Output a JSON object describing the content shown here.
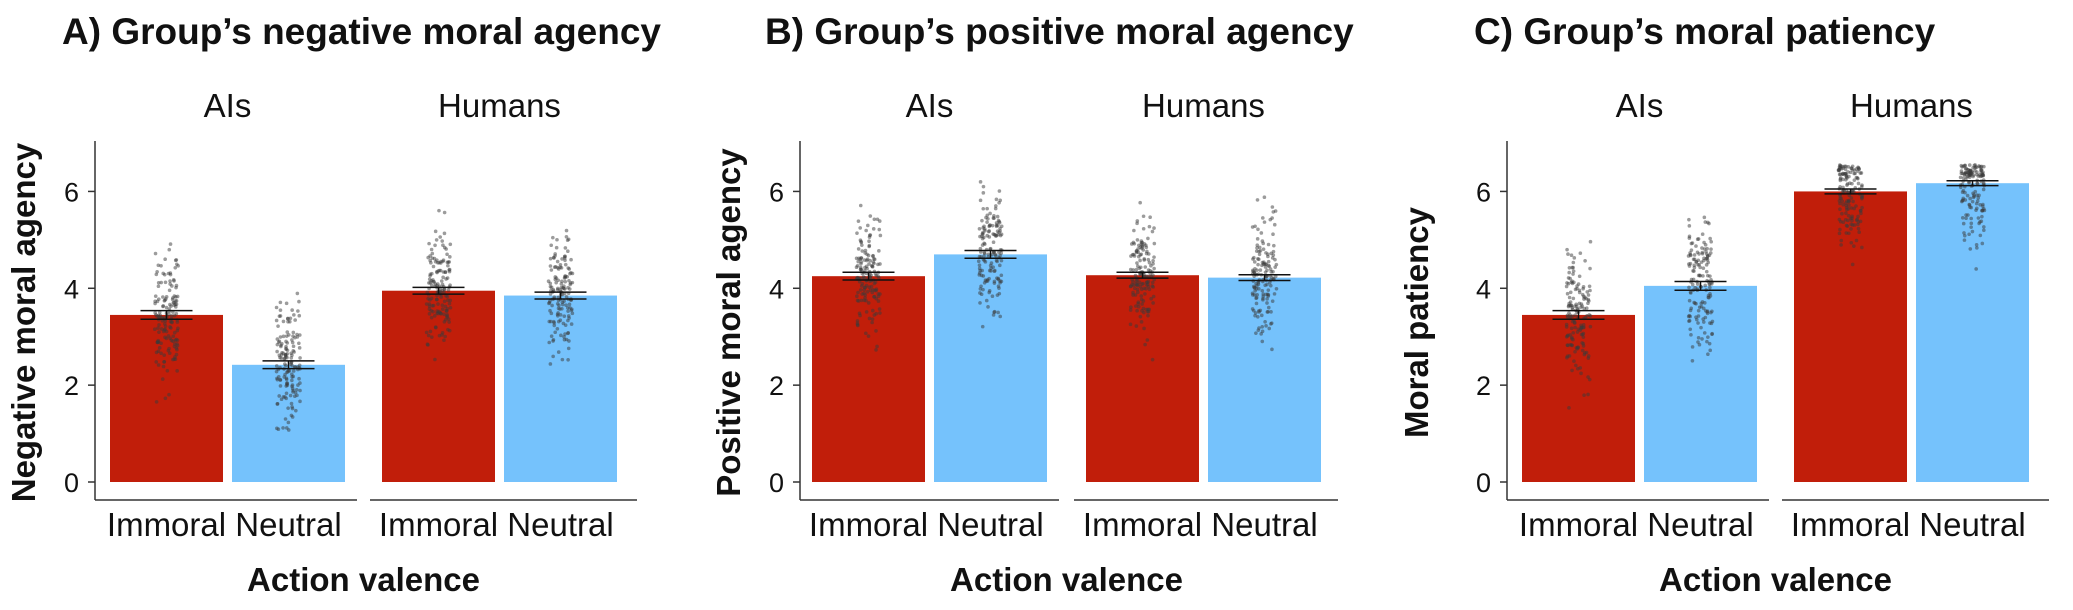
{
  "chart_data": [
    {
      "type": "bar",
      "title": "A) Group’s negative moral agency",
      "ylabel": "Negative moral agency",
      "xlabel": "Action valence",
      "ylim": [
        0,
        7
      ],
      "yticks": [
        0,
        2,
        4,
        6
      ],
      "grid": false,
      "facets": [
        {
          "label": "AIs",
          "categories": [
            "Immoral",
            "Neutral"
          ],
          "values": [
            3.45,
            2.42
          ],
          "se": [
            0.09,
            0.08
          ]
        },
        {
          "label": "Humans",
          "categories": [
            "Immoral",
            "Neutral"
          ],
          "values": [
            3.95,
            3.85
          ],
          "se": [
            0.07,
            0.07
          ]
        }
      ]
    },
    {
      "type": "bar",
      "title": "B) Group’s positive moral agency",
      "ylabel": "Positive moral agency",
      "xlabel": "Action valence",
      "ylim": [
        0,
        7
      ],
      "yticks": [
        0,
        2,
        4,
        6
      ],
      "grid": false,
      "facets": [
        {
          "label": "AIs",
          "categories": [
            "Immoral",
            "Neutral"
          ],
          "values": [
            4.25,
            4.7
          ],
          "se": [
            0.08,
            0.08
          ]
        },
        {
          "label": "Humans",
          "categories": [
            "Immoral",
            "Neutral"
          ],
          "values": [
            4.27,
            4.22
          ],
          "se": [
            0.06,
            0.06
          ]
        }
      ]
    },
    {
      "type": "bar",
      "title": "C) Group’s moral patiency",
      "ylabel": "Moral patiency",
      "xlabel": "Action valence",
      "ylim": [
        0,
        7
      ],
      "yticks": [
        0,
        2,
        4,
        6
      ],
      "grid": false,
      "facets": [
        {
          "label": "AIs",
          "categories": [
            "Immoral",
            "Neutral"
          ],
          "values": [
            3.45,
            4.05
          ],
          "se": [
            0.09,
            0.09
          ]
        },
        {
          "label": "Humans",
          "categories": [
            "Immoral",
            "Neutral"
          ],
          "values": [
            6.0,
            6.17
          ],
          "se": [
            0.05,
            0.05
          ]
        }
      ]
    }
  ],
  "colors": {
    "Immoral": "#c11e0a",
    "Neutral": "#75c2fc",
    "points": "#3a3a3a"
  }
}
